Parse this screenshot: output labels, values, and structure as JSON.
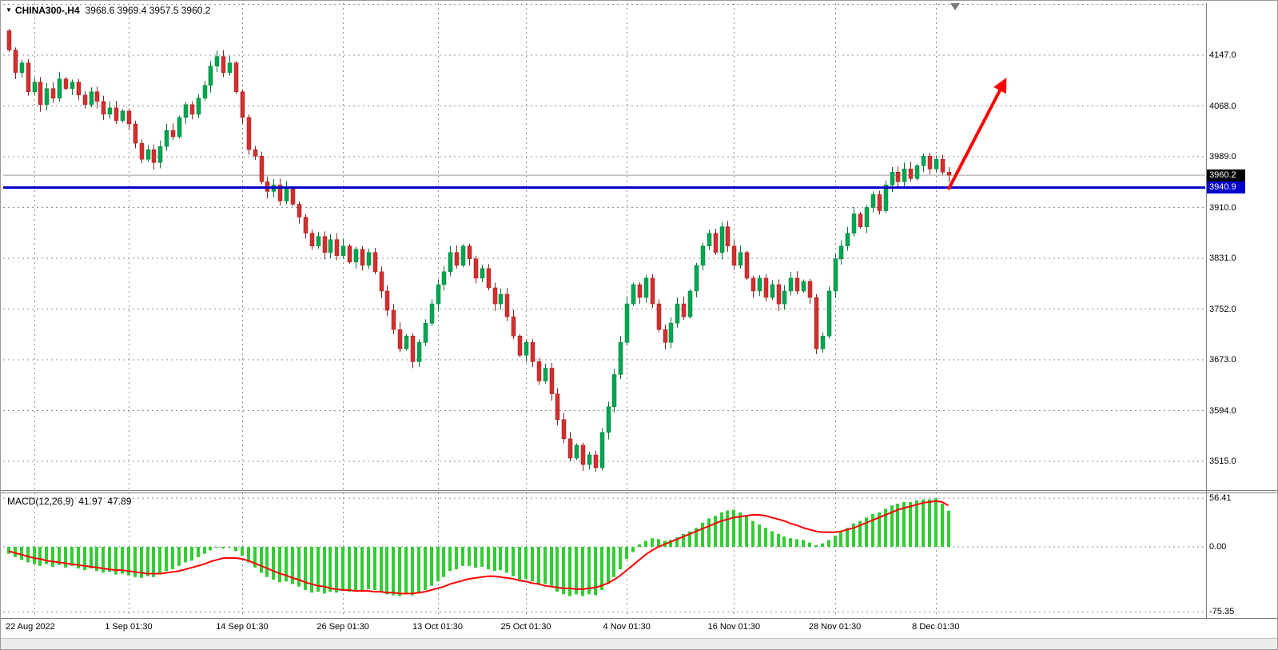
{
  "header": {
    "marker": "▼",
    "symbol": "CHINA300-,H4",
    "ohlc": "3968.6 3969.4 3957.5 3960.2"
  },
  "price_axis": {
    "current_price": "3960.2",
    "hline_price": "3940.9"
  },
  "macd_panel": {
    "name": "MACD(12,26,9)",
    "value": "41.97",
    "signal_value": "47.89"
  },
  "colors": {
    "candle_up_fill": "#00a651",
    "candle_up_stroke": "#007a33",
    "candle_down_fill": "#d32f2f",
    "candle_down_stroke": "#961d1d",
    "macd_hist": "#33cc33",
    "signal_line": "#ff0000",
    "hline": "#0000cd",
    "arrow": "#ff0000",
    "grid": "#909090",
    "current_line": "#9c9c9c",
    "badge_current_bg": "#000000",
    "badge_hline_bg": "#0000cd",
    "border": "#808080"
  },
  "chart_data": [
    {
      "type": "candlestick",
      "symbol": "CHINA300-,H4",
      "timeframe": "H4",
      "last_ohlc": {
        "open": 3968.6,
        "high": 3969.4,
        "low": 3957.5,
        "close": 3960.2
      },
      "y_ticks": [
        4147.0,
        4068.0,
        3989.0,
        3910.0,
        3831.0,
        3752.0,
        3673.0,
        3594.0,
        3515.0
      ],
      "x_tick_labels": [
        "22 Aug 2022",
        "1 Sep 01:30",
        "14 Sep 01:30",
        "26 Sep 01:30",
        "13 Oct 01:30",
        "25 Oct 01:30",
        "4 Nov 01:30",
        "16 Nov 01:30",
        "28 Nov 01:30",
        "8 Dec 01:30"
      ],
      "x_tick_indices": [
        4,
        19,
        37,
        53,
        68,
        82,
        98,
        115,
        131,
        147
      ],
      "first_open": 4185,
      "closes": [
        4155,
        4120,
        4135,
        4090,
        4105,
        4070,
        4095,
        4080,
        4110,
        4095,
        4105,
        4085,
        4070,
        4090,
        4075,
        4055,
        4065,
        4045,
        4060,
        4040,
        4010,
        3985,
        4000,
        3980,
        4005,
        4030,
        4020,
        4050,
        4070,
        4055,
        4080,
        4100,
        4130,
        4145,
        4120,
        4135,
        4090,
        4050,
        4000,
        3990,
        3950,
        3935,
        3945,
        3920,
        3940,
        3915,
        3895,
        3870,
        3850,
        3865,
        3840,
        3860,
        3835,
        3850,
        3825,
        3845,
        3820,
        3840,
        3810,
        3780,
        3750,
        3720,
        3690,
        3710,
        3670,
        3700,
        3730,
        3760,
        3790,
        3810,
        3840,
        3820,
        3850,
        3830,
        3800,
        3815,
        3785,
        3760,
        3775,
        3740,
        3710,
        3680,
        3700,
        3670,
        3640,
        3660,
        3620,
        3580,
        3550,
        3520,
        3540,
        3510,
        3525,
        3505,
        3560,
        3600,
        3650,
        3700,
        3760,
        3790,
        3770,
        3800,
        3760,
        3720,
        3700,
        3730,
        3760,
        3740,
        3780,
        3820,
        3850,
        3870,
        3840,
        3880,
        3850,
        3820,
        3840,
        3800,
        3780,
        3800,
        3770,
        3790,
        3760,
        3780,
        3800,
        3780,
        3795,
        3770,
        3690,
        3710,
        3780,
        3830,
        3850,
        3870,
        3900,
        3880,
        3910,
        3930,
        3905,
        3945,
        3965,
        3950,
        3970,
        3955,
        3975,
        3990,
        3970,
        3985,
        3965,
        3960.2
      ],
      "annotations": {
        "current_price": 3960.2,
        "horizontal_line_price": 3940.9,
        "trend_arrow": {
          "from_index": 149,
          "from_price": 3938,
          "to_index": 158,
          "to_price": 4108
        }
      }
    },
    {
      "type": "bar",
      "title": "MACD(12,26,9)",
      "current_macd": 41.97,
      "current_signal": 47.89,
      "y_ticks": [
        56.41,
        0.0,
        -75.35
      ],
      "ylim": [
        -75.35,
        56.41
      ],
      "histogram": [
        -8,
        -12,
        -15,
        -18,
        -20,
        -22,
        -20,
        -23,
        -21,
        -24,
        -22,
        -25,
        -27,
        -25,
        -28,
        -30,
        -29,
        -32,
        -31,
        -33,
        -35,
        -36,
        -34,
        -35,
        -32,
        -28,
        -26,
        -22,
        -18,
        -16,
        -12,
        -8,
        -4,
        -1,
        -2,
        -1,
        -5,
        -10,
        -18,
        -24,
        -30,
        -35,
        -38,
        -41,
        -40,
        -43,
        -46,
        -50,
        -53,
        -52,
        -54,
        -52,
        -53,
        -51,
        -52,
        -50,
        -51,
        -49,
        -50,
        -52,
        -55,
        -56,
        -57,
        -55,
        -56,
        -54,
        -50,
        -45,
        -40,
        -35,
        -28,
        -26,
        -22,
        -22,
        -24,
        -23,
        -26,
        -28,
        -27,
        -30,
        -34,
        -38,
        -37,
        -40,
        -44,
        -43,
        -47,
        -52,
        -55,
        -57,
        -55,
        -57,
        -55,
        -56,
        -50,
        -43,
        -35,
        -26,
        -14,
        -6,
        3,
        7,
        10,
        9,
        7,
        8,
        11,
        15,
        18,
        22,
        28,
        33,
        36,
        40,
        42,
        43,
        40,
        36,
        30,
        26,
        22,
        18,
        15,
        12,
        10,
        9,
        8,
        5,
        2,
        4,
        8,
        13,
        17,
        22,
        27,
        30,
        34,
        38,
        40,
        44,
        48,
        50,
        52,
        52,
        54,
        55,
        55,
        56,
        50,
        41.97
      ],
      "signal": [
        -5,
        -7,
        -9,
        -11,
        -13,
        -14,
        -16,
        -17,
        -18,
        -19,
        -20,
        -21,
        -22,
        -23,
        -24,
        -25,
        -26,
        -27,
        -27,
        -28,
        -29,
        -30,
        -31,
        -31,
        -31,
        -30,
        -29,
        -28,
        -26,
        -24,
        -22,
        -20,
        -17,
        -15,
        -13,
        -13,
        -13,
        -14,
        -16,
        -19,
        -22,
        -25,
        -28,
        -31,
        -33,
        -36,
        -38,
        -41,
        -43,
        -45,
        -46,
        -48,
        -49,
        -50,
        -50,
        -51,
        -51,
        -51,
        -52,
        -52,
        -53,
        -53,
        -54,
        -54,
        -54,
        -53,
        -52,
        -50,
        -48,
        -46,
        -43,
        -41,
        -39,
        -37,
        -36,
        -35,
        -34,
        -34,
        -35,
        -36,
        -37,
        -39,
        -40,
        -42,
        -43,
        -45,
        -46,
        -47,
        -48,
        -48,
        -49,
        -49,
        -48,
        -47,
        -45,
        -42,
        -38,
        -33,
        -27,
        -21,
        -15,
        -9,
        -4,
        0,
        3,
        6,
        9,
        12,
        15,
        18,
        21,
        24,
        27,
        30,
        32,
        34,
        35,
        36,
        37,
        37,
        36,
        34,
        32,
        30,
        27,
        25,
        22,
        20,
        18,
        17,
        17,
        17,
        18,
        20,
        22,
        25,
        28,
        31,
        34,
        37,
        40,
        43,
        45,
        47,
        49,
        51,
        52,
        53,
        52,
        47.89
      ]
    }
  ]
}
